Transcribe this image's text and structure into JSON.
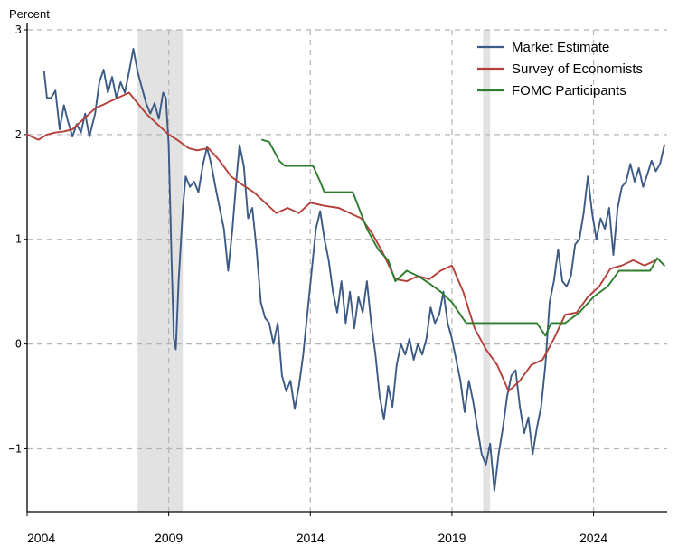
{
  "chart_data": {
    "type": "line",
    "unit_label": "Percent",
    "ylim": [
      -1.6,
      3.0
    ],
    "xlim": [
      2004.0,
      2026.6
    ],
    "y_ticks": [
      {
        "value": 3,
        "label": "3"
      },
      {
        "value": 2,
        "label": "2"
      },
      {
        "value": 1,
        "label": "1"
      },
      {
        "value": 0,
        "label": "0"
      },
      {
        "value": -1,
        "label": "−1"
      }
    ],
    "x_ticks": [
      {
        "value": 2004,
        "label": "2004"
      },
      {
        "value": 2009,
        "label": "2009"
      },
      {
        "value": 2014,
        "label": "2014"
      },
      {
        "value": 2019,
        "label": "2019"
      },
      {
        "value": 2024,
        "label": "2024"
      }
    ],
    "grid": true,
    "legend_position": "top-right",
    "shaded_periods": [
      [
        2007.9,
        2009.5
      ],
      [
        2020.1,
        2020.35
      ]
    ],
    "series": [
      {
        "name": "Market Estimate",
        "color": "#3b5a85",
        "points": [
          [
            2004.6,
            2.6
          ],
          [
            2004.7,
            2.35
          ],
          [
            2004.85,
            2.35
          ],
          [
            2005.0,
            2.42
          ],
          [
            2005.15,
            2.05
          ],
          [
            2005.3,
            2.28
          ],
          [
            2005.45,
            2.12
          ],
          [
            2005.6,
            1.98
          ],
          [
            2005.75,
            2.1
          ],
          [
            2005.9,
            2.02
          ],
          [
            2006.05,
            2.2
          ],
          [
            2006.2,
            1.98
          ],
          [
            2006.4,
            2.2
          ],
          [
            2006.55,
            2.5
          ],
          [
            2006.7,
            2.62
          ],
          [
            2006.85,
            2.4
          ],
          [
            2007.0,
            2.55
          ],
          [
            2007.15,
            2.35
          ],
          [
            2007.3,
            2.5
          ],
          [
            2007.45,
            2.4
          ],
          [
            2007.6,
            2.6
          ],
          [
            2007.75,
            2.82
          ],
          [
            2007.9,
            2.6
          ],
          [
            2008.05,
            2.45
          ],
          [
            2008.2,
            2.3
          ],
          [
            2008.35,
            2.2
          ],
          [
            2008.5,
            2.3
          ],
          [
            2008.65,
            2.15
          ],
          [
            2008.8,
            2.4
          ],
          [
            2008.9,
            2.35
          ],
          [
            2009.0,
            1.9
          ],
          [
            2009.1,
            0.8
          ],
          [
            2009.18,
            0.05
          ],
          [
            2009.25,
            -0.05
          ],
          [
            2009.35,
            0.6
          ],
          [
            2009.5,
            1.3
          ],
          [
            2009.6,
            1.6
          ],
          [
            2009.75,
            1.5
          ],
          [
            2009.9,
            1.55
          ],
          [
            2010.05,
            1.45
          ],
          [
            2010.2,
            1.7
          ],
          [
            2010.35,
            1.88
          ],
          [
            2010.5,
            1.72
          ],
          [
            2010.65,
            1.5
          ],
          [
            2010.8,
            1.3
          ],
          [
            2010.95,
            1.1
          ],
          [
            2011.1,
            0.7
          ],
          [
            2011.25,
            1.1
          ],
          [
            2011.4,
            1.6
          ],
          [
            2011.5,
            1.9
          ],
          [
            2011.65,
            1.7
          ],
          [
            2011.8,
            1.2
          ],
          [
            2011.95,
            1.3
          ],
          [
            2012.1,
            0.9
          ],
          [
            2012.25,
            0.4
          ],
          [
            2012.4,
            0.25
          ],
          [
            2012.55,
            0.2
          ],
          [
            2012.7,
            0.0
          ],
          [
            2012.85,
            0.2
          ],
          [
            2013.0,
            -0.3
          ],
          [
            2013.15,
            -0.45
          ],
          [
            2013.3,
            -0.35
          ],
          [
            2013.45,
            -0.62
          ],
          [
            2013.6,
            -0.4
          ],
          [
            2013.75,
            -0.1
          ],
          [
            2013.9,
            0.3
          ],
          [
            2014.05,
            0.7
          ],
          [
            2014.2,
            1.1
          ],
          [
            2014.35,
            1.27
          ],
          [
            2014.5,
            1.0
          ],
          [
            2014.65,
            0.8
          ],
          [
            2014.8,
            0.5
          ],
          [
            2014.95,
            0.3
          ],
          [
            2015.1,
            0.6
          ],
          [
            2015.25,
            0.2
          ],
          [
            2015.4,
            0.5
          ],
          [
            2015.55,
            0.15
          ],
          [
            2015.7,
            0.45
          ],
          [
            2015.85,
            0.3
          ],
          [
            2016.0,
            0.6
          ],
          [
            2016.15,
            0.2
          ],
          [
            2016.3,
            -0.1
          ],
          [
            2016.45,
            -0.5
          ],
          [
            2016.6,
            -0.72
          ],
          [
            2016.75,
            -0.4
          ],
          [
            2016.9,
            -0.6
          ],
          [
            2017.05,
            -0.2
          ],
          [
            2017.2,
            0.0
          ],
          [
            2017.35,
            -0.1
          ],
          [
            2017.5,
            0.05
          ],
          [
            2017.65,
            -0.15
          ],
          [
            2017.8,
            0.0
          ],
          [
            2017.95,
            -0.1
          ],
          [
            2018.1,
            0.05
          ],
          [
            2018.25,
            0.35
          ],
          [
            2018.4,
            0.2
          ],
          [
            2018.55,
            0.28
          ],
          [
            2018.7,
            0.5
          ],
          [
            2018.85,
            0.2
          ],
          [
            2019.0,
            0.05
          ],
          [
            2019.15,
            -0.15
          ],
          [
            2019.3,
            -0.35
          ],
          [
            2019.45,
            -0.65
          ],
          [
            2019.6,
            -0.35
          ],
          [
            2019.75,
            -0.55
          ],
          [
            2019.9,
            -0.8
          ],
          [
            2020.05,
            -1.05
          ],
          [
            2020.2,
            -1.15
          ],
          [
            2020.35,
            -0.95
          ],
          [
            2020.5,
            -1.4
          ],
          [
            2020.65,
            -1.05
          ],
          [
            2020.8,
            -0.8
          ],
          [
            2020.95,
            -0.5
          ],
          [
            2021.1,
            -0.3
          ],
          [
            2021.25,
            -0.25
          ],
          [
            2021.4,
            -0.6
          ],
          [
            2021.55,
            -0.85
          ],
          [
            2021.7,
            -0.7
          ],
          [
            2021.85,
            -1.05
          ],
          [
            2022.0,
            -0.8
          ],
          [
            2022.15,
            -0.6
          ],
          [
            2022.3,
            -0.2
          ],
          [
            2022.45,
            0.4
          ],
          [
            2022.6,
            0.6
          ],
          [
            2022.75,
            0.9
          ],
          [
            2022.9,
            0.6
          ],
          [
            2023.05,
            0.55
          ],
          [
            2023.2,
            0.65
          ],
          [
            2023.35,
            0.95
          ],
          [
            2023.5,
            1.0
          ],
          [
            2023.65,
            1.25
          ],
          [
            2023.8,
            1.6
          ],
          [
            2023.95,
            1.25
          ],
          [
            2024.1,
            1.0
          ],
          [
            2024.25,
            1.2
          ],
          [
            2024.4,
            1.1
          ],
          [
            2024.55,
            1.3
          ],
          [
            2024.7,
            0.85
          ],
          [
            2024.85,
            1.3
          ],
          [
            2025.0,
            1.5
          ],
          [
            2025.15,
            1.55
          ],
          [
            2025.3,
            1.72
          ],
          [
            2025.45,
            1.55
          ],
          [
            2025.6,
            1.68
          ],
          [
            2025.75,
            1.5
          ],
          [
            2025.9,
            1.62
          ],
          [
            2026.05,
            1.75
          ],
          [
            2026.2,
            1.65
          ],
          [
            2026.35,
            1.72
          ],
          [
            2026.5,
            1.9
          ]
        ]
      },
      {
        "name": "Survey of Economists",
        "color": "#b3403a",
        "points": [
          [
            2004.0,
            2.0
          ],
          [
            2004.4,
            1.95
          ],
          [
            2004.7,
            2.0
          ],
          [
            2005.0,
            2.02
          ],
          [
            2005.3,
            2.03
          ],
          [
            2005.6,
            2.05
          ],
          [
            2006.0,
            2.15
          ],
          [
            2006.4,
            2.25
          ],
          [
            2006.8,
            2.3
          ],
          [
            2007.2,
            2.35
          ],
          [
            2007.6,
            2.4
          ],
          [
            2007.9,
            2.3
          ],
          [
            2008.2,
            2.2
          ],
          [
            2008.6,
            2.1
          ],
          [
            2009.0,
            2.0
          ],
          [
            2009.3,
            1.95
          ],
          [
            2009.7,
            1.87
          ],
          [
            2010.0,
            1.85
          ],
          [
            2010.4,
            1.87
          ],
          [
            2010.8,
            1.75
          ],
          [
            2011.2,
            1.6
          ],
          [
            2011.6,
            1.52
          ],
          [
            2012.0,
            1.45
          ],
          [
            2012.4,
            1.35
          ],
          [
            2012.8,
            1.25
          ],
          [
            2013.2,
            1.3
          ],
          [
            2013.6,
            1.25
          ],
          [
            2014.0,
            1.35
          ],
          [
            2014.5,
            1.32
          ],
          [
            2015.0,
            1.3
          ],
          [
            2015.4,
            1.25
          ],
          [
            2015.8,
            1.2
          ],
          [
            2016.2,
            1.05
          ],
          [
            2016.6,
            0.85
          ],
          [
            2017.0,
            0.62
          ],
          [
            2017.4,
            0.6
          ],
          [
            2017.8,
            0.65
          ],
          [
            2018.2,
            0.62
          ],
          [
            2018.6,
            0.7
          ],
          [
            2019.0,
            0.75
          ],
          [
            2019.4,
            0.5
          ],
          [
            2019.8,
            0.15
          ],
          [
            2020.2,
            -0.05
          ],
          [
            2020.6,
            -0.2
          ],
          [
            2021.0,
            -0.45
          ],
          [
            2021.4,
            -0.35
          ],
          [
            2021.8,
            -0.2
          ],
          [
            2022.2,
            -0.15
          ],
          [
            2022.6,
            0.05
          ],
          [
            2023.0,
            0.28
          ],
          [
            2023.4,
            0.3
          ],
          [
            2023.8,
            0.45
          ],
          [
            2024.2,
            0.55
          ],
          [
            2024.6,
            0.72
          ],
          [
            2025.0,
            0.75
          ],
          [
            2025.4,
            0.8
          ],
          [
            2025.8,
            0.75
          ],
          [
            2026.2,
            0.8
          ]
        ]
      },
      {
        "name": "FOMC Participants",
        "color": "#2e7d2e",
        "points": [
          [
            2012.3,
            1.95
          ],
          [
            2012.55,
            1.93
          ],
          [
            2012.9,
            1.75
          ],
          [
            2013.1,
            1.7
          ],
          [
            2013.6,
            1.7
          ],
          [
            2014.1,
            1.7
          ],
          [
            2014.35,
            1.55
          ],
          [
            2014.5,
            1.45
          ],
          [
            2015.1,
            1.45
          ],
          [
            2015.5,
            1.45
          ],
          [
            2016.0,
            1.1
          ],
          [
            2016.4,
            0.9
          ],
          [
            2016.75,
            0.8
          ],
          [
            2017.0,
            0.6
          ],
          [
            2017.4,
            0.7
          ],
          [
            2017.8,
            0.65
          ],
          [
            2018.2,
            0.58
          ],
          [
            2018.6,
            0.5
          ],
          [
            2019.0,
            0.4
          ],
          [
            2019.5,
            0.2
          ],
          [
            2020.0,
            0.2
          ],
          [
            2020.5,
            0.2
          ],
          [
            2021.0,
            0.2
          ],
          [
            2021.5,
            0.2
          ],
          [
            2022.0,
            0.2
          ],
          [
            2022.3,
            0.08
          ],
          [
            2022.5,
            0.2
          ],
          [
            2023.0,
            0.2
          ],
          [
            2023.5,
            0.3
          ],
          [
            2024.0,
            0.45
          ],
          [
            2024.5,
            0.55
          ],
          [
            2024.9,
            0.7
          ],
          [
            2025.5,
            0.7
          ],
          [
            2026.0,
            0.7
          ],
          [
            2026.25,
            0.82
          ],
          [
            2026.5,
            0.75
          ]
        ]
      }
    ]
  }
}
